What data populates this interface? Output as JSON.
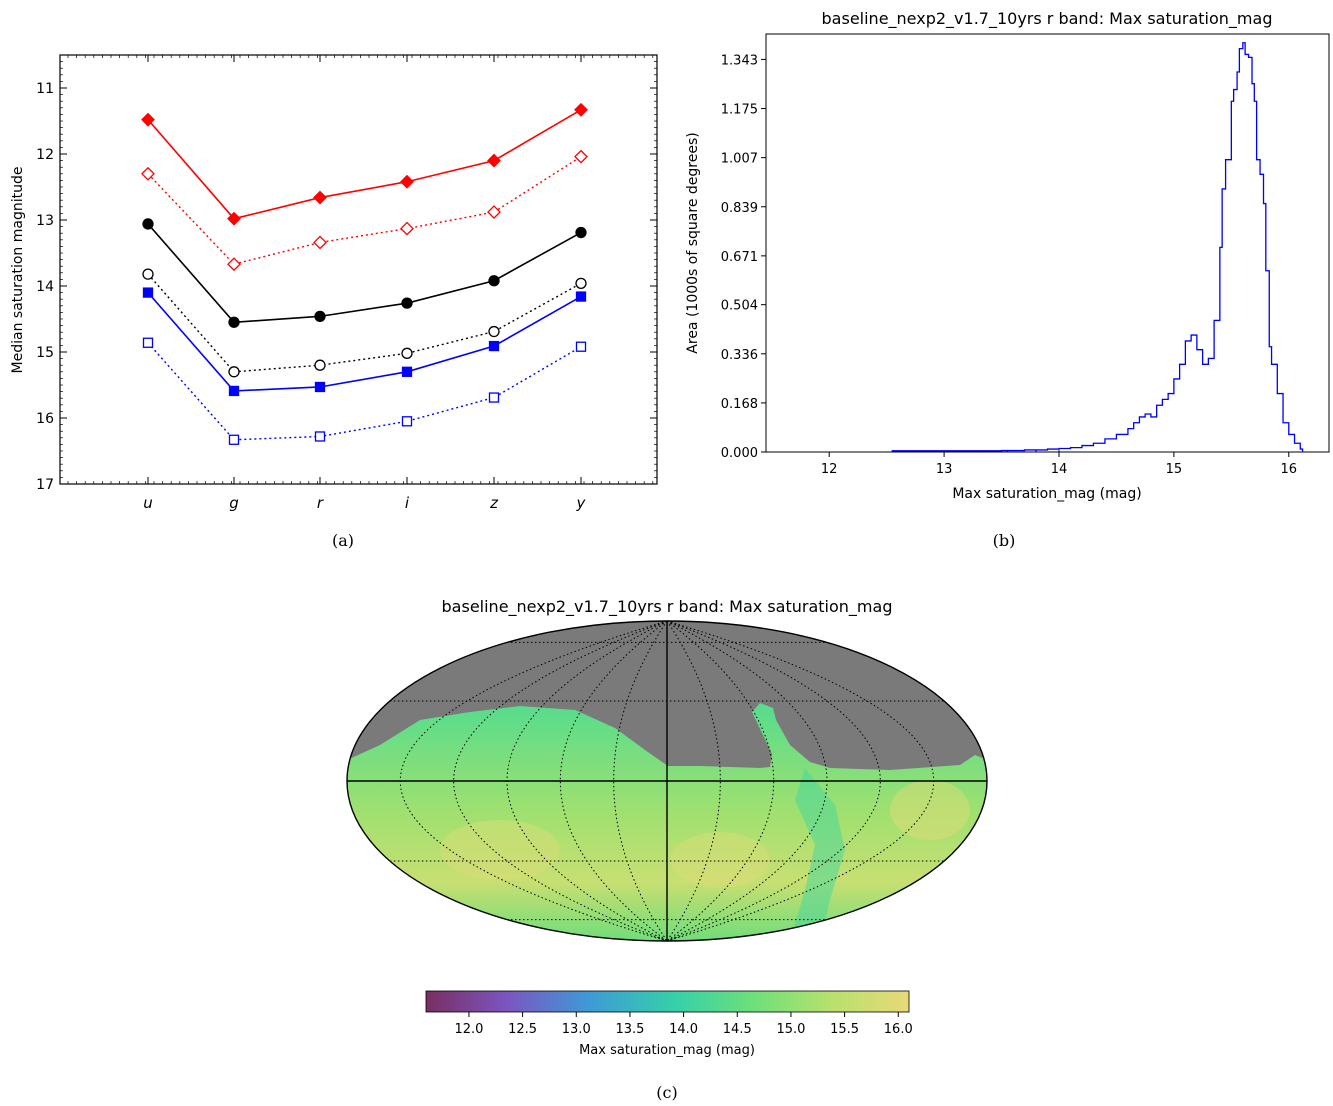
{
  "chart_data": [
    {
      "panel": "(a)",
      "type": "line",
      "title": "",
      "xlabel": "",
      "ylabel": "Median saturation magnitude",
      "categories": [
        "u",
        "g",
        "r",
        "i",
        "z",
        "y"
      ],
      "ylim": [
        17,
        10.5
      ],
      "y_inverted": true,
      "yticks": [
        11,
        12,
        13,
        14,
        15,
        16,
        17
      ],
      "series": [
        {
          "color": "#ff0000",
          "marker": "diamond",
          "filled": true,
          "linestyle": "solid",
          "values": [
            11.48,
            12.98,
            12.66,
            12.42,
            12.1,
            11.33
          ]
        },
        {
          "color": "#ff0000",
          "marker": "diamond",
          "filled": false,
          "linestyle": "dotted",
          "values": [
            12.3,
            13.67,
            13.34,
            13.13,
            12.88,
            12.04
          ]
        },
        {
          "color": "#000000",
          "marker": "circle",
          "filled": true,
          "linestyle": "solid",
          "values": [
            13.06,
            14.55,
            14.46,
            14.26,
            13.92,
            13.19
          ]
        },
        {
          "color": "#000000",
          "marker": "circle",
          "filled": false,
          "linestyle": "dotted",
          "values": [
            13.82,
            15.3,
            15.2,
            15.02,
            14.69,
            13.96
          ]
        },
        {
          "color": "#0000ff",
          "marker": "square",
          "filled": true,
          "linestyle": "solid",
          "values": [
            14.1,
            15.59,
            15.53,
            15.3,
            14.91,
            14.16
          ]
        },
        {
          "color": "#0000ff",
          "marker": "square",
          "filled": false,
          "linestyle": "dotted",
          "values": [
            14.86,
            16.33,
            16.28,
            16.05,
            15.69,
            14.92
          ]
        }
      ]
    },
    {
      "panel": "(b)",
      "type": "line",
      "subtype": "step-histogram",
      "title": "baseline_nexp2_v1.7_10yrs r band: Max saturation_mag",
      "xlabel": "Max saturation_mag (mag)",
      "ylabel": "Area (1000s of square degrees)",
      "xlim": [
        11.45,
        16.35
      ],
      "ylim": [
        0,
        1.43
      ],
      "xticks": [
        "12",
        "13",
        "14",
        "15",
        "16"
      ],
      "yticks": [
        "0.000",
        "0.168",
        "0.336",
        "0.504",
        "0.671",
        "0.839",
        "1.007",
        "1.175",
        "1.343"
      ],
      "color": "#0000ff",
      "x": [
        12.55,
        13.0,
        13.3,
        13.5,
        13.7,
        13.9,
        14.0,
        14.1,
        14.2,
        14.3,
        14.4,
        14.5,
        14.6,
        14.65,
        14.7,
        14.75,
        14.8,
        14.85,
        14.9,
        14.95,
        15.0,
        15.05,
        15.1,
        15.15,
        15.2,
        15.25,
        15.3,
        15.35,
        15.4,
        15.42,
        15.45,
        15.5,
        15.52,
        15.55,
        15.57,
        15.6,
        15.62,
        15.65,
        15.68,
        15.7,
        15.72,
        15.75,
        15.78,
        15.8,
        15.83,
        15.85,
        15.9,
        15.95,
        16.0,
        16.05,
        16.1
      ],
      "values": [
        0.004,
        0.004,
        0.004,
        0.005,
        0.007,
        0.01,
        0.012,
        0.015,
        0.022,
        0.03,
        0.045,
        0.06,
        0.08,
        0.1,
        0.12,
        0.13,
        0.12,
        0.16,
        0.18,
        0.2,
        0.25,
        0.3,
        0.38,
        0.4,
        0.35,
        0.3,
        0.32,
        0.45,
        0.7,
        0.9,
        1.0,
        1.2,
        1.24,
        1.3,
        1.38,
        1.4,
        1.36,
        1.35,
        1.26,
        1.2,
        1.0,
        0.95,
        0.85,
        0.62,
        0.36,
        0.3,
        0.2,
        0.1,
        0.06,
        0.03,
        0.01
      ]
    },
    {
      "panel": "(c)",
      "type": "heatmap",
      "subtype": "mollweide-sky-map",
      "title": "baseline_nexp2_v1.7_10yrs r band: Max saturation_mag",
      "colorbar_label": "Max saturation_mag (mag)",
      "colorbar_range": [
        11.6,
        16.1
      ],
      "colorbar_ticks": [
        "12.0",
        "12.5",
        "13.0",
        "13.5",
        "14.0",
        "14.5",
        "15.0",
        "15.5",
        "16.0"
      ],
      "colormap": [
        "#7a2e62",
        "#7b56c2",
        "#3d9bd6",
        "#36d1a8",
        "#6ee07a",
        "#b9e06e",
        "#e8d978"
      ],
      "no_data_color": "#7a7a7a"
    }
  ],
  "captions": {
    "a": "(a)",
    "b": "(b)",
    "c": "(c)"
  }
}
